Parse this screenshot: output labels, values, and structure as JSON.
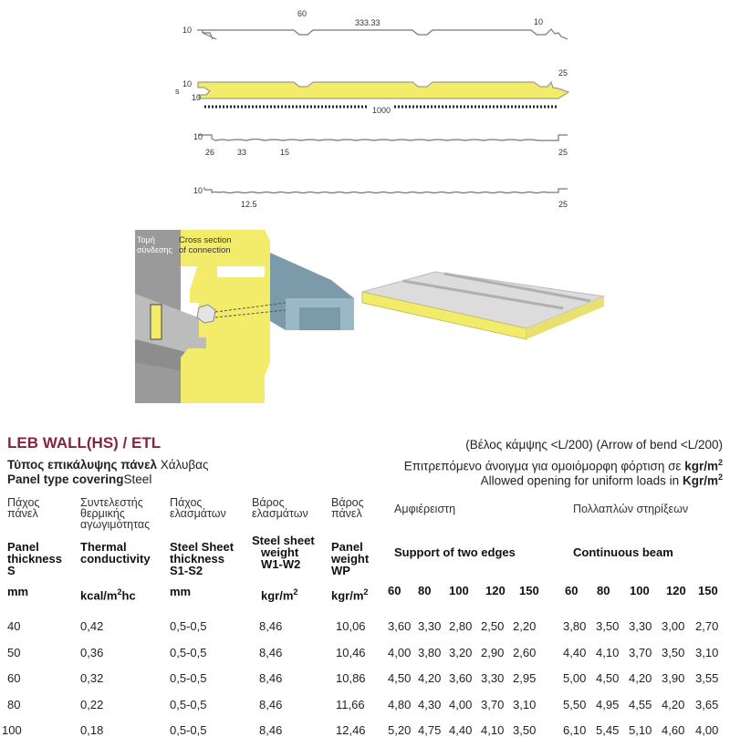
{
  "drawing": {
    "profile1": {
      "dims": [
        "10",
        "60",
        "333.33",
        "10"
      ]
    },
    "panel": {
      "dims": [
        "10",
        "10",
        "s",
        "25",
        "1000"
      ],
      "foam_color": "#f2ec6a"
    },
    "profile3": {
      "dims": [
        "10",
        "26",
        "33",
        "15",
        "25"
      ]
    },
    "profile4": {
      "dims": [
        "10",
        "12.5",
        "25"
      ]
    }
  },
  "connection": {
    "label_gr": [
      "Τομή",
      "σύνδεσης"
    ],
    "label_en": [
      "Cross section",
      "of connection"
    ]
  },
  "title": "LEB WALL(HS) / ETL",
  "covering": {
    "gr_bold": "Τύπος επικάλυψης πάνελ",
    "gr_value": "Χάλυβας",
    "en_bold": "Panel type covering",
    "en_value": "Steel"
  },
  "bend_note": "(Βέλος κάμψης <L/200) (Arrow of bend <L/200)",
  "opening": {
    "gr": "Επιτρεπόμενο άνοιγμα για ομοιόμορφη φόρτιση σε",
    "gr_unit": "kgr/m",
    "en": "Allowed opening for uniform loads in",
    "en_unit": "Kgr/m",
    "sup": "2"
  },
  "table": {
    "headers": [
      {
        "gr": [
          "Πάχος",
          "πάνελ"
        ],
        "en": [
          "Panel",
          "thickness",
          "S"
        ],
        "unit": "mm"
      },
      {
        "gr": [
          "Συντελεστής",
          "θερμικής",
          "αγωγιμότητας"
        ],
        "en": [
          "Thermal",
          "conductivity"
        ],
        "unit": "kcal/m",
        "unit_sup": "2",
        "unit_tail": "hc"
      },
      {
        "gr": [
          "Πάχος",
          "ελασμάτων"
        ],
        "en": [
          "Steel Sheet",
          "thickness",
          "S1-S2"
        ],
        "unit": "mm"
      },
      {
        "gr": [
          "Βάρος",
          "ελασμάτων"
        ],
        "en": [
          "Steel sheet",
          "weight",
          "W1-W2"
        ],
        "unit": "kgr/m",
        "unit_sup": "2"
      },
      {
        "gr": [
          "Βάρος",
          "πάνελ"
        ],
        "en": [
          "Panel",
          "weight",
          "WP"
        ],
        "unit": "kgr/m",
        "unit_sup": "2"
      }
    ],
    "group1": {
      "gr": "Αμφιέρειστη",
      "en": "Support of two edges"
    },
    "group2": {
      "gr": "Πολλαπλών στηρίξεων",
      "en": "Continuous beam"
    },
    "spans": [
      "60",
      "80",
      "100",
      "120",
      "150",
      "60",
      "80",
      "100",
      "120",
      "150"
    ],
    "rows": [
      [
        "40",
        "0,42",
        "0,5-0,5",
        "8,46",
        "10,06",
        "3,60",
        "3,30",
        "2,80",
        "2,50",
        "2,20",
        "3,80",
        "3,50",
        "3,30",
        "3,00",
        "2,70"
      ],
      [
        "50",
        "0,36",
        "0,5-0,5",
        "8,46",
        "10,46",
        "4,00",
        "3,80",
        "3,20",
        "2,90",
        "2,60",
        "4,40",
        "4,10",
        "3,70",
        "3,50",
        "3,10"
      ],
      [
        "60",
        "0,32",
        "0,5-0,5",
        "8,46",
        "10,86",
        "4,50",
        "4,20",
        "3,60",
        "3,30",
        "2,95",
        "5,00",
        "4,50",
        "4,20",
        "3,90",
        "3,55"
      ],
      [
        "80",
        "0,22",
        "0,5-0,5",
        "8,46",
        "11,66",
        "4,80",
        "4,30",
        "4,00",
        "3,70",
        "3,10",
        "5,50",
        "4,95",
        "4,55",
        "4,20",
        "3,65"
      ],
      [
        "100",
        "0,18",
        "0,5-0,5",
        "8,46",
        "12,46",
        "5,20",
        "4,75",
        "4,40",
        "4,10",
        "3,50",
        "6,10",
        "5,45",
        "5,10",
        "4,60",
        "4,00"
      ]
    ]
  }
}
